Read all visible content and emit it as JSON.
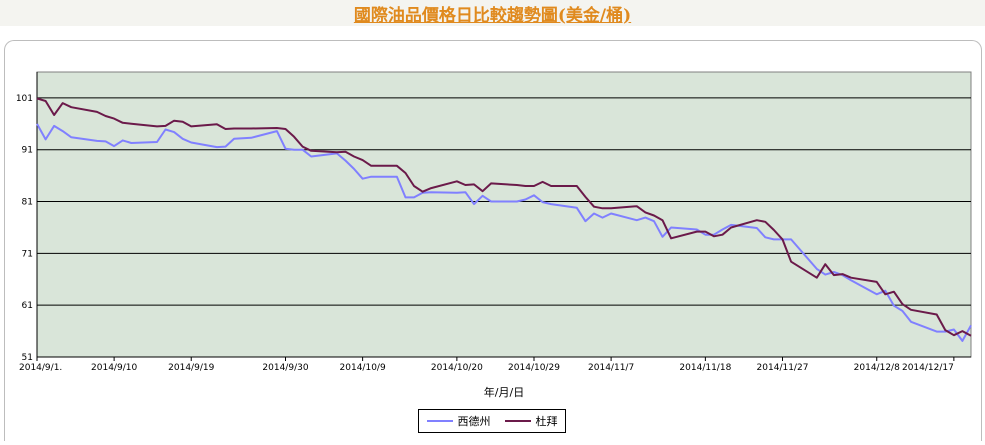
{
  "title": "國際油品價格日比較趨勢圖(美金/桶)",
  "colors": {
    "plot_bg": "#d9e5d9",
    "wti": "#8080ff",
    "dubai": "#6b1a4a",
    "grid": "#000000"
  },
  "chart_data": {
    "type": "line",
    "title": "國際油品價格日比較趨勢圖(美金/桶)",
    "xlabel": "年/月/日",
    "ylabel": "",
    "ylim": [
      51,
      106
    ],
    "yticks": [
      51,
      61,
      71,
      81,
      91,
      101
    ],
    "x_range": [
      "2014/9/1",
      "2014/12/19"
    ],
    "xtick_labels": [
      {
        "date": "2014/9/1",
        "label": "2014/9/1."
      },
      {
        "date": "2014/9/10",
        "label": "2014/9/10"
      },
      {
        "date": "2014/9/19",
        "label": "2014/9/19"
      },
      {
        "date": "2014/9/30",
        "label": "2014/9/30"
      },
      {
        "date": "2014/10/9",
        "label": "2014/10/9"
      },
      {
        "date": "2014/10/20",
        "label": "2014/10/20"
      },
      {
        "date": "2014/10/29",
        "label": "2014/10/29"
      },
      {
        "date": "2014/11/7",
        "label": "2014/11/7"
      },
      {
        "date": "2014/11/18",
        "label": "2014/11/18"
      },
      {
        "date": "2014/11/27",
        "label": "2014/11/27"
      },
      {
        "date": "2014/12/8",
        "label": "2014/12/8"
      },
      {
        "date": "2014/12/17",
        "label": "2014/12/17"
      }
    ],
    "grid": "horizontal",
    "legend_position": "bottom-center",
    "series": [
      {
        "name": "西德州",
        "color": "#8080ff",
        "points": [
          [
            "2014/9/1",
            96.0
          ],
          [
            "2014/9/2",
            93.0
          ],
          [
            "2014/9/3",
            95.6
          ],
          [
            "2014/9/4",
            94.6
          ],
          [
            "2014/9/5",
            93.4
          ],
          [
            "2014/9/8",
            92.7
          ],
          [
            "2014/9/9",
            92.6
          ],
          [
            "2014/9/10",
            91.7
          ],
          [
            "2014/9/11",
            92.8
          ],
          [
            "2014/9/12",
            92.3
          ],
          [
            "2014/9/15",
            92.5
          ],
          [
            "2014/9/16",
            94.9
          ],
          [
            "2014/9/17",
            94.4
          ],
          [
            "2014/9/18",
            93.1
          ],
          [
            "2014/9/19",
            92.4
          ],
          [
            "2014/9/22",
            91.5
          ],
          [
            "2014/9/23",
            91.6
          ],
          [
            "2014/9/24",
            93.1
          ],
          [
            "2014/9/25",
            93.2
          ],
          [
            "2014/9/26",
            93.3
          ],
          [
            "2014/9/29",
            94.6
          ],
          [
            "2014/9/30",
            91.2
          ],
          [
            "2014/10/1",
            91.0
          ],
          [
            "2014/10/2",
            91.0
          ],
          [
            "2014/10/3",
            89.7
          ],
          [
            "2014/10/6",
            90.3
          ],
          [
            "2014/10/7",
            88.9
          ],
          [
            "2014/10/8",
            87.3
          ],
          [
            "2014/10/9",
            85.4
          ],
          [
            "2014/10/10",
            85.8
          ],
          [
            "2014/10/13",
            85.8
          ],
          [
            "2014/10/14",
            81.8
          ],
          [
            "2014/10/15",
            81.8
          ],
          [
            "2014/10/16",
            82.7
          ],
          [
            "2014/10/17",
            82.8
          ],
          [
            "2014/10/20",
            82.7
          ],
          [
            "2014/10/21",
            82.8
          ],
          [
            "2014/10/22",
            80.5
          ],
          [
            "2014/10/23",
            82.1
          ],
          [
            "2014/10/24",
            81.0
          ],
          [
            "2014/10/27",
            81.0
          ],
          [
            "2014/10/28",
            81.4
          ],
          [
            "2014/10/29",
            82.2
          ],
          [
            "2014/10/30",
            80.9
          ],
          [
            "2014/10/31",
            80.5
          ],
          [
            "2014/11/3",
            79.8
          ],
          [
            "2014/11/4",
            77.2
          ],
          [
            "2014/11/5",
            78.7
          ],
          [
            "2014/11/6",
            77.9
          ],
          [
            "2014/11/7",
            78.7
          ],
          [
            "2014/11/10",
            77.4
          ],
          [
            "2014/11/11",
            77.9
          ],
          [
            "2014/11/12",
            77.2
          ],
          [
            "2014/11/13",
            74.2
          ],
          [
            "2014/11/14",
            76.0
          ],
          [
            "2014/11/17",
            75.6
          ],
          [
            "2014/11/18",
            74.6
          ],
          [
            "2014/11/19",
            74.6
          ],
          [
            "2014/11/20",
            75.6
          ],
          [
            "2014/11/21",
            76.5
          ],
          [
            "2014/11/24",
            75.9
          ],
          [
            "2014/11/25",
            74.1
          ],
          [
            "2014/11/26",
            73.7
          ],
          [
            "2014/11/27",
            73.7
          ],
          [
            "2014/11/28",
            73.7
          ],
          [
            "2014/12/1",
            68.0
          ],
          [
            "2014/12/2",
            66.9
          ],
          [
            "2014/12/3",
            67.4
          ],
          [
            "2014/12/4",
            66.8
          ],
          [
            "2014/12/5",
            65.8
          ],
          [
            "2014/12/8",
            63.1
          ],
          [
            "2014/12/9",
            63.8
          ],
          [
            "2014/12/10",
            60.9
          ],
          [
            "2014/12/11",
            59.9
          ],
          [
            "2014/12/12",
            57.8
          ],
          [
            "2014/12/15",
            55.9
          ],
          [
            "2014/12/16",
            55.9
          ],
          [
            "2014/12/17",
            56.3
          ],
          [
            "2014/12/18",
            54.1
          ],
          [
            "2014/12/19",
            57.1
          ]
        ]
      },
      {
        "name": "杜拜",
        "color": "#6b1a4a",
        "points": [
          [
            "2014/9/1",
            100.9
          ],
          [
            "2014/9/2",
            100.4
          ],
          [
            "2014/9/3",
            97.7
          ],
          [
            "2014/9/4",
            100.0
          ],
          [
            "2014/9/5",
            99.2
          ],
          [
            "2014/9/8",
            98.3
          ],
          [
            "2014/9/9",
            97.5
          ],
          [
            "2014/9/10",
            97.0
          ],
          [
            "2014/9/11",
            96.2
          ],
          [
            "2014/9/12",
            96.0
          ],
          [
            "2014/9/15",
            95.5
          ],
          [
            "2014/9/16",
            95.6
          ],
          [
            "2014/9/17",
            96.6
          ],
          [
            "2014/9/18",
            96.4
          ],
          [
            "2014/9/19",
            95.5
          ],
          [
            "2014/9/22",
            95.9
          ],
          [
            "2014/9/23",
            95.0
          ],
          [
            "2014/9/24",
            95.1
          ],
          [
            "2014/9/25",
            95.1
          ],
          [
            "2014/9/26",
            95.1
          ],
          [
            "2014/9/29",
            95.2
          ],
          [
            "2014/9/30",
            95.0
          ],
          [
            "2014/10/1",
            93.5
          ],
          [
            "2014/10/2",
            91.6
          ],
          [
            "2014/10/3",
            90.8
          ],
          [
            "2014/10/6",
            90.5
          ],
          [
            "2014/10/7",
            90.6
          ],
          [
            "2014/10/8",
            89.7
          ],
          [
            "2014/10/9",
            89.0
          ],
          [
            "2014/10/10",
            87.9
          ],
          [
            "2014/10/13",
            87.9
          ],
          [
            "2014/10/14",
            86.5
          ],
          [
            "2014/10/15",
            84.0
          ],
          [
            "2014/10/16",
            82.9
          ],
          [
            "2014/10/17",
            83.6
          ],
          [
            "2014/10/20",
            84.9
          ],
          [
            "2014/10/21",
            84.2
          ],
          [
            "2014/10/22",
            84.3
          ],
          [
            "2014/10/23",
            83.0
          ],
          [
            "2014/10/24",
            84.5
          ],
          [
            "2014/10/27",
            84.2
          ],
          [
            "2014/10/28",
            84.0
          ],
          [
            "2014/10/29",
            84.0
          ],
          [
            "2014/10/30",
            84.8
          ],
          [
            "2014/10/31",
            84.0
          ],
          [
            "2014/11/3",
            84.0
          ],
          [
            "2014/11/4",
            81.9
          ],
          [
            "2014/11/5",
            80.0
          ],
          [
            "2014/11/6",
            79.7
          ],
          [
            "2014/11/7",
            79.7
          ],
          [
            "2014/11/10",
            80.1
          ],
          [
            "2014/11/11",
            78.9
          ],
          [
            "2014/11/12",
            78.3
          ],
          [
            "2014/11/13",
            77.4
          ],
          [
            "2014/11/14",
            73.9
          ],
          [
            "2014/11/17",
            75.2
          ],
          [
            "2014/11/18",
            75.2
          ],
          [
            "2014/11/19",
            74.3
          ],
          [
            "2014/11/20",
            74.6
          ],
          [
            "2014/11/21",
            76.0
          ],
          [
            "2014/11/24",
            77.4
          ],
          [
            "2014/11/25",
            77.1
          ],
          [
            "2014/11/26",
            75.5
          ],
          [
            "2014/11/27",
            73.7
          ],
          [
            "2014/11/28",
            69.4
          ],
          [
            "2014/12/1",
            66.3
          ],
          [
            "2014/12/2",
            68.9
          ],
          [
            "2014/12/3",
            66.8
          ],
          [
            "2014/12/4",
            67.0
          ],
          [
            "2014/12/5",
            66.3
          ],
          [
            "2014/12/8",
            65.5
          ],
          [
            "2014/12/9",
            63.1
          ],
          [
            "2014/12/10",
            63.6
          ],
          [
            "2014/12/11",
            61.2
          ],
          [
            "2014/12/12",
            60.1
          ],
          [
            "2014/12/15",
            59.2
          ],
          [
            "2014/12/16",
            56.2
          ],
          [
            "2014/12/17",
            55.2
          ],
          [
            "2014/12/18",
            56.0
          ],
          [
            "2014/12/19",
            55.1
          ]
        ]
      }
    ]
  }
}
